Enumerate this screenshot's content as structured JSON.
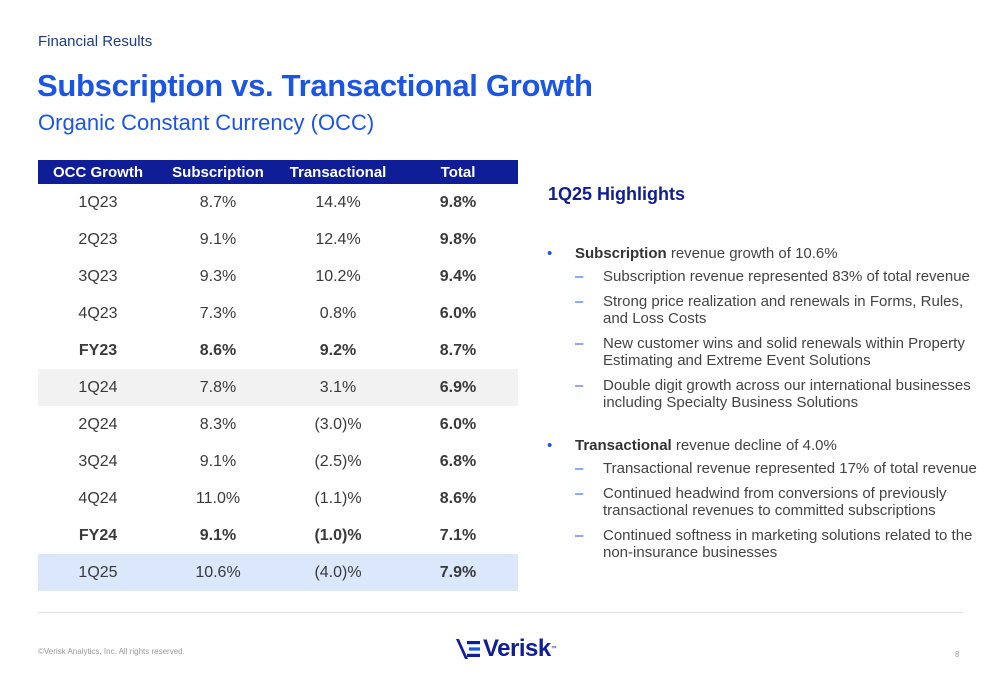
{
  "header": {
    "section": "Financial Results",
    "title": "Subscription vs. Transactional Growth",
    "subtitle": "Organic Constant Currency (OCC)"
  },
  "table": {
    "columns": [
      "OCC Growth",
      "Subscription",
      "Transactional",
      "Total"
    ],
    "rows": [
      {
        "period": "1Q23",
        "subscription": "8.7%",
        "transactional": "14.4%",
        "total": "9.8%"
      },
      {
        "period": "2Q23",
        "subscription": "9.1%",
        "transactional": "12.4%",
        "total": "9.8%"
      },
      {
        "period": "3Q23",
        "subscription": "9.3%",
        "transactional": "10.2%",
        "total": "9.4%"
      },
      {
        "period": "4Q23",
        "subscription": "7.3%",
        "transactional": "0.8%",
        "total": "6.0%"
      },
      {
        "period": "FY23",
        "subscription": "8.6%",
        "transactional": "9.2%",
        "total": "8.7%"
      },
      {
        "period": "1Q24",
        "subscription": "7.8%",
        "transactional": "3.1%",
        "total": "6.9%"
      },
      {
        "period": "2Q24",
        "subscription": "8.3%",
        "transactional": "(3.0)%",
        "total": "6.0%"
      },
      {
        "period": "3Q24",
        "subscription": "9.1%",
        "transactional": "(2.5)%",
        "total": "6.8%"
      },
      {
        "period": "4Q24",
        "subscription": "11.0%",
        "transactional": "(1.1)%",
        "total": "8.6%"
      },
      {
        "period": "FY24",
        "subscription": "9.1%",
        "transactional": "(1.0)%",
        "total": "7.1%"
      },
      {
        "period": "1Q25",
        "subscription": "10.6%",
        "transactional": "(4.0)%",
        "total": "7.9%"
      }
    ]
  },
  "highlights": {
    "title": "1Q25 Highlights",
    "bullet_glyph": "•",
    "dash_glyph": "–",
    "items": [
      {
        "bold": "Subscription",
        "rest": " revenue growth of 10.6%",
        "subs": [
          "Subscription revenue represented 83% of total revenue",
          "Strong price realization and renewals in Forms, Rules, and Loss Costs",
          "New customer wins and solid renewals within Property Estimating and Extreme Event Solutions",
          "Double digit growth across our international businesses including Specialty Business Solutions"
        ]
      },
      {
        "bold": "Transactional",
        "rest": " revenue decline of 4.0%",
        "subs": [
          "Transactional revenue represented 17% of total revenue",
          "Continued headwind from conversions of previously transactional revenues to committed subscriptions",
          "Continued softness in marketing solutions related to the non-insurance businesses"
        ]
      }
    ]
  },
  "footer": {
    "copyright": "©Verisk Analytics, Inc. All rights reserved.",
    "logo_text": "Verisk",
    "logo_tm": "™",
    "page_number": "8"
  },
  "colors": {
    "brand_navy": "#0f1e96",
    "title_blue": "#1b55e6",
    "grey_row": "#f2f2f2",
    "blue_row": "#dbe8fb"
  }
}
